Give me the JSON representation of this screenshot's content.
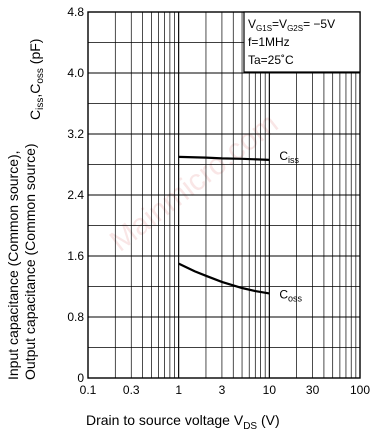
{
  "chart_data": {
    "type": "line",
    "xlabel": "Drain to source voltage",
    "xlabel_symbol": {
      "base": "V",
      "sub": "DS"
    },
    "xunit": "(V)",
    "ylabel_lines": [
      "Input capacitance (Common source),",
      "Output capacitance (Common source)"
    ],
    "ylabel_symbols": "C_iss, C_oss",
    "yunit": "(pF)",
    "x_scale": "log",
    "xlim": [
      0.1,
      100
    ],
    "ylim": [
      0,
      4.8
    ],
    "x_ticks": [
      0.1,
      0.3,
      1,
      3,
      10,
      30,
      100
    ],
    "x_tick_labels": [
      "0.1",
      "0.3",
      "1",
      "3",
      "10",
      "30",
      "100"
    ],
    "y_ticks": [
      0,
      0.8,
      1.6,
      2.4,
      3.2,
      4.0,
      4.8
    ],
    "y_tick_labels": [
      "0",
      "0.8",
      "1.6",
      "2.4",
      "3.2",
      "4.0",
      "4.8"
    ],
    "grid": true,
    "conditions": {
      "line1": {
        "a": "V",
        "a_sub": "G1S",
        "eq1": "=",
        "b": "V",
        "b_sub": "G2S",
        "eq2": "= −5V"
      },
      "line2": "f=1MHz",
      "line3": "Ta=25˚C"
    },
    "series": [
      {
        "name": "C_iss",
        "label_base": "C",
        "label_sub": "iss",
        "x": [
          1,
          2,
          3,
          5,
          10
        ],
        "y": [
          2.9,
          2.89,
          2.88,
          2.875,
          2.86
        ]
      },
      {
        "name": "C_oss",
        "label_base": "C",
        "label_sub": "oss",
        "x": [
          1,
          1.5,
          2,
          3,
          5,
          7,
          10
        ],
        "y": [
          1.5,
          1.4,
          1.34,
          1.26,
          1.18,
          1.14,
          1.11
        ]
      }
    ],
    "watermark": "Mainmicro.com"
  }
}
